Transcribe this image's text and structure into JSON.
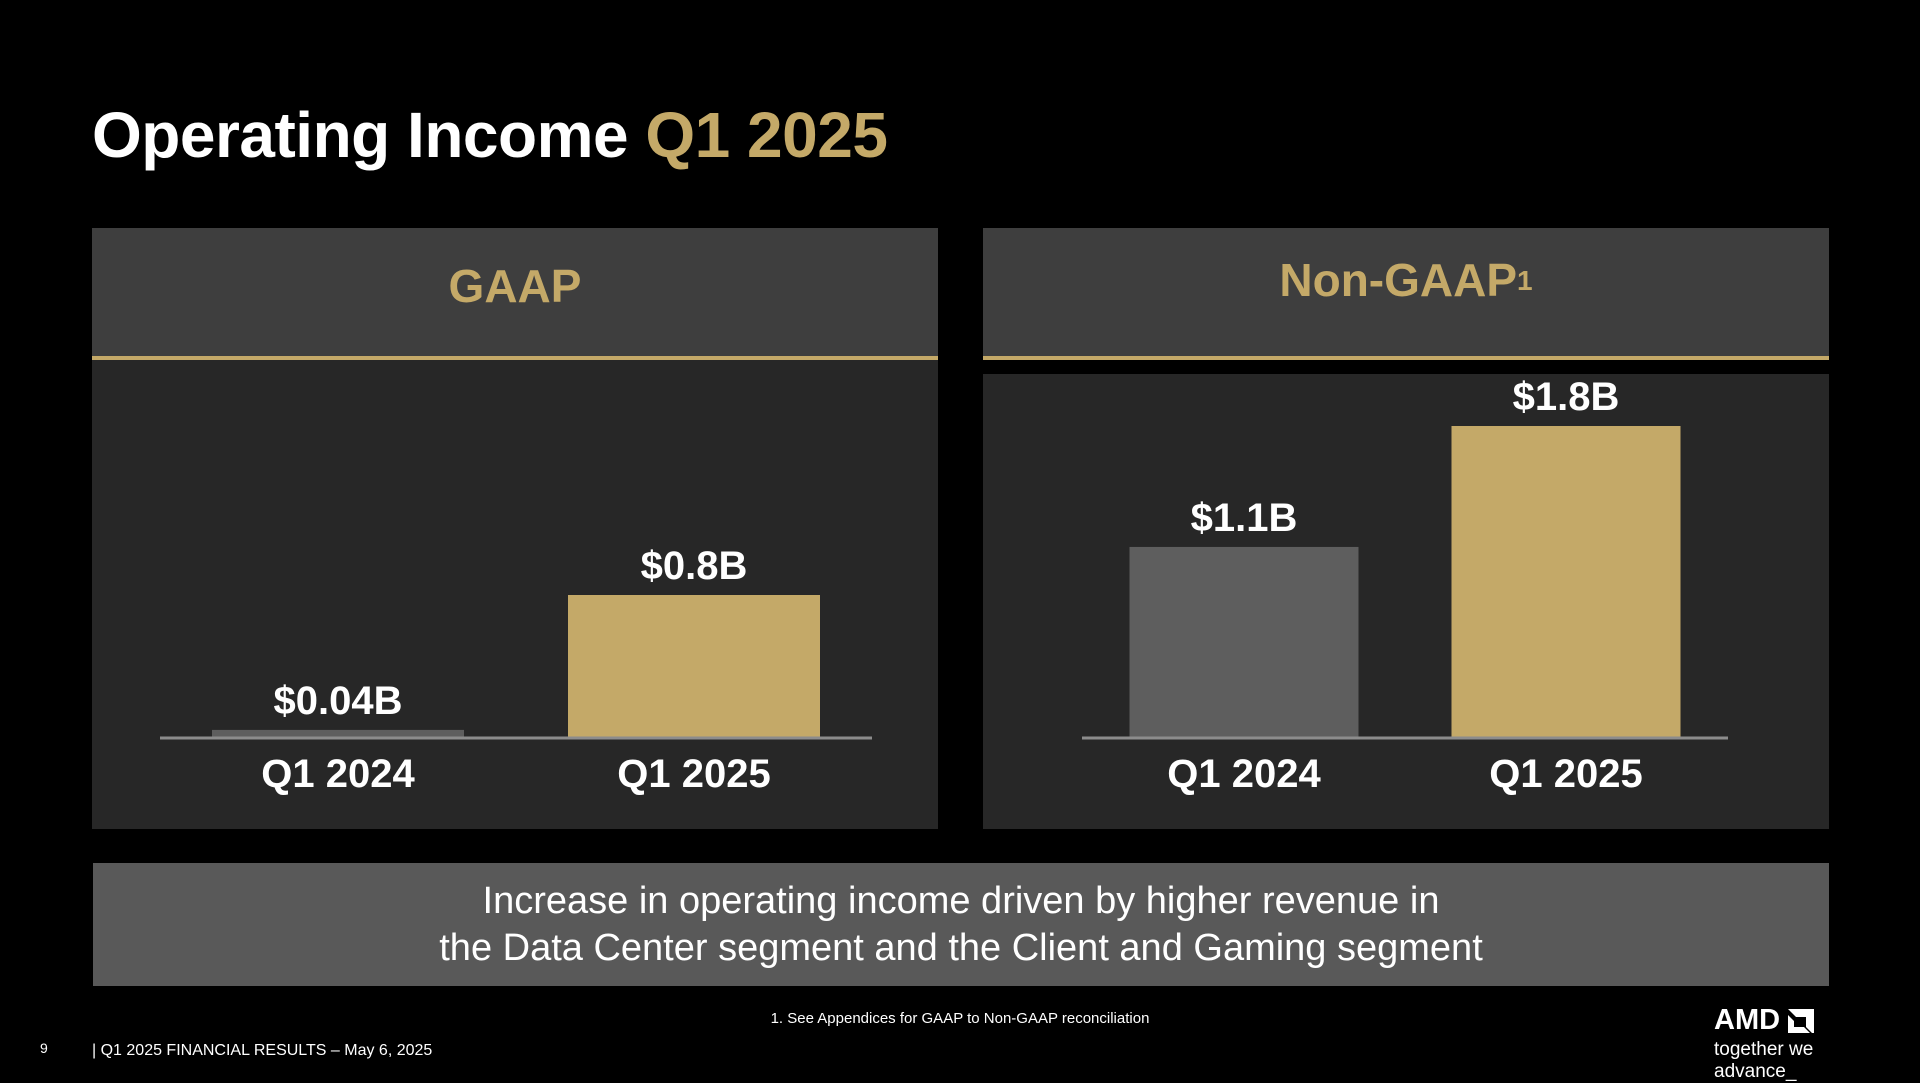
{
  "title": {
    "main": "Operating Income",
    "highlight": "Q1 2025"
  },
  "colors": {
    "gold": "#c4a968",
    "gray_bar": "#5e5e5e",
    "axis": "#8c8c8c"
  },
  "chart_data": [
    {
      "type": "bar",
      "title": "GAAP",
      "categories": [
        "Q1 2024",
        "Q1 2025"
      ],
      "values": [
        0.04,
        0.8
      ],
      "data_labels": [
        "$0.04B",
        "$0.8B"
      ],
      "unit": "$B",
      "bar_colors": [
        "#5e5e5e",
        "#c4a968"
      ],
      "ylim": [
        0,
        0.8
      ]
    },
    {
      "type": "bar",
      "title": "Non-GAAP",
      "title_superscript": "1",
      "categories": [
        "Q1 2024",
        "Q1 2025"
      ],
      "values": [
        1.1,
        1.8
      ],
      "data_labels": [
        "$1.1B",
        "$1.8B"
      ],
      "unit": "$B",
      "bar_colors": [
        "#5e5e5e",
        "#c4a968"
      ],
      "ylim": [
        0,
        1.8
      ]
    }
  ],
  "summary": {
    "line1": "Increase in operating income driven by higher revenue in",
    "line2": "the Data Center segment and the Client and Gaming segment"
  },
  "footnote": "1. See Appendices for GAAP to Non-GAAP reconciliation",
  "footer": {
    "page_number": "9",
    "text": "|   Q1 2025 FINANCIAL RESULTS – May 6, 2025"
  },
  "logo": {
    "brand": "AMD",
    "icon": "amd-arrow-icon",
    "tagline": "together we advance_"
  }
}
